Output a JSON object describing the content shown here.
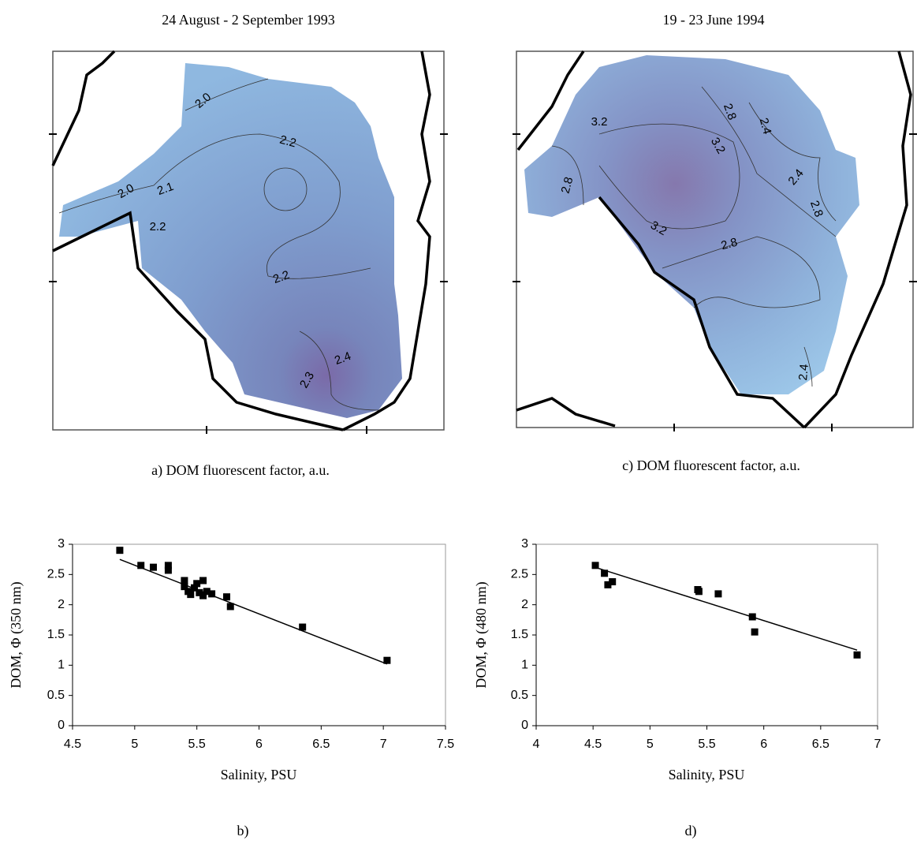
{
  "maps": [
    {
      "title": "24 August - 2 September 1993",
      "caption": "a) DOM fluorescent factor, a.u.",
      "contour_labels": [
        "2.0",
        "2.2",
        "2.0",
        "2.1",
        "2.2",
        "2.2",
        "2.4",
        "2.3"
      ]
    },
    {
      "title": "19 - 23 June 1994",
      "caption": "c) DOM fluorescent factor, a.u.",
      "contour_labels": [
        "3.2",
        "2.8",
        "2.4",
        "3.2",
        "2.8",
        "2.4",
        "2.8",
        "3.2",
        "2.8",
        "2.4"
      ]
    }
  ],
  "chart_data": [
    {
      "type": "scatter",
      "panel_label": "b)",
      "x_label": "Salinity, PSU",
      "y_label": "DOM, Φ (350 nm)",
      "x": [
        4.88,
        5.05,
        5.15,
        5.27,
        5.27,
        5.4,
        5.4,
        5.43,
        5.45,
        5.48,
        5.5,
        5.52,
        5.55,
        5.55,
        5.58,
        5.62,
        5.74,
        5.77,
        6.35,
        7.03
      ],
      "values": [
        2.9,
        2.65,
        2.62,
        2.65,
        2.57,
        2.4,
        2.3,
        2.22,
        2.17,
        2.28,
        2.35,
        2.2,
        2.4,
        2.15,
        2.22,
        2.18,
        2.13,
        1.97,
        1.63,
        1.08
      ],
      "trend": {
        "x": [
          4.88,
          7.03
        ],
        "values": [
          2.75,
          1.02
        ]
      },
      "color": "#000000",
      "xlim": [
        4.5,
        7.5
      ],
      "xticks": [
        4.5,
        5,
        5.5,
        6,
        6.5,
        7,
        7.5
      ],
      "ylim": [
        0,
        3
      ],
      "yticks": [
        0,
        0.5,
        1,
        1.5,
        2,
        2.5,
        3
      ]
    },
    {
      "type": "scatter",
      "panel_label": "d)",
      "x_label": "Salinity, PSU",
      "y_label": "DOM, Φ (480 nm)",
      "x": [
        4.52,
        4.6,
        4.63,
        4.67,
        5.42,
        5.43,
        5.6,
        5.9,
        5.92,
        6.82
      ],
      "values": [
        2.65,
        2.52,
        2.33,
        2.38,
        2.25,
        2.22,
        2.18,
        1.8,
        1.55,
        1.17
      ],
      "trend": {
        "x": [
          4.55,
          6.82
        ],
        "values": [
          2.6,
          1.25
        ]
      },
      "color": "#000000",
      "xlim": [
        4,
        7
      ],
      "xticks": [
        4,
        4.5,
        5,
        5.5,
        6,
        6.5,
        7
      ],
      "ylim": [
        0,
        3
      ],
      "yticks": [
        0,
        0.5,
        1,
        1.5,
        2,
        2.5,
        3
      ]
    }
  ]
}
